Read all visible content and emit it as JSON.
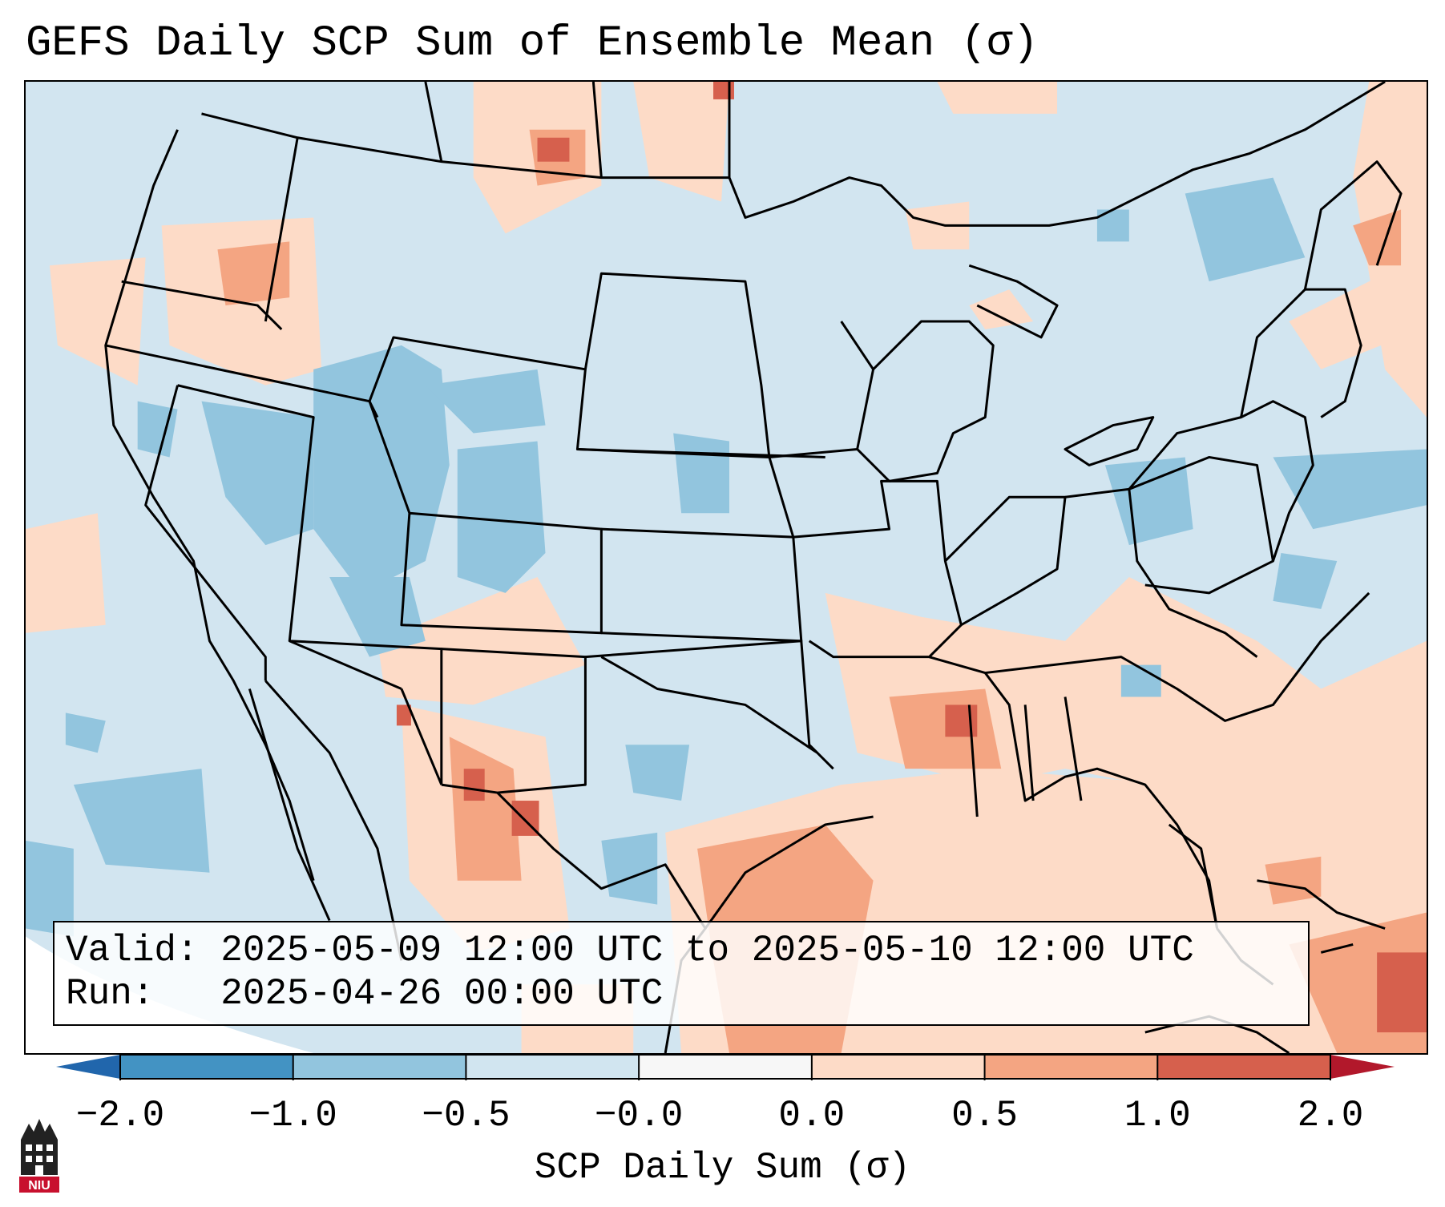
{
  "title": "GEFS Daily SCP Sum of Ensemble Mean (σ)",
  "info": {
    "valid": "Valid: 2025-05-09 12:00 UTC to 2025-05-10 12:00 UTC",
    "run": "Run:   2025-04-26 00:00 UTC"
  },
  "colorbar": {
    "ticks": [
      "−2.0",
      "−1.0",
      "−0.5",
      "−0.0",
      "0.0",
      "0.5",
      "1.0",
      "2.0"
    ],
    "label": "SCP Daily Sum (σ)",
    "bins": [
      {
        "from": -2.0,
        "to": -1.0,
        "color": "#4393c3"
      },
      {
        "from": -1.0,
        "to": -0.5,
        "color": "#92c5de"
      },
      {
        "from": -0.5,
        "to": -0.0,
        "color": "#d1e5f0"
      },
      {
        "from": 0.0,
        "to": 0.5,
        "color": "#fddbc7"
      },
      {
        "from": 0.5,
        "to": 1.0,
        "color": "#f4a582"
      },
      {
        "from": 1.0,
        "to": 2.0,
        "color": "#d6604d"
      }
    ],
    "under_color": "#2166ac",
    "over_color": "#b2182b",
    "neutral_color": "#f7f7f7"
  },
  "logo_text": "NIU"
}
